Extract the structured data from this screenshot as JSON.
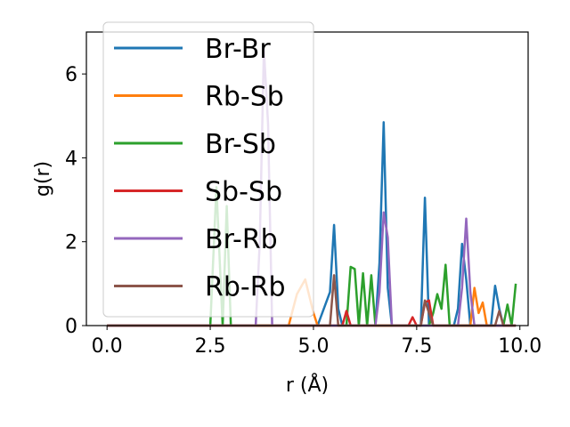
{
  "chart_data": {
    "type": "line",
    "title": "",
    "xlabel": "r (Å)",
    "ylabel": "g(r)",
    "xlim": [
      -0.5,
      10.2
    ],
    "ylim": [
      0,
      7
    ],
    "xticks": [
      0.0,
      2.5,
      5.0,
      7.5,
      10.0
    ],
    "xtick_labels": [
      "0.0",
      "2.5",
      "5.0",
      "7.5",
      "10.0"
    ],
    "yticks": [
      0,
      2,
      4,
      6
    ],
    "ytick_labels": [
      "0",
      "2",
      "4",
      "6"
    ],
    "grid": false,
    "legend_position": "upper-left",
    "series": [
      {
        "name": "Br-Br",
        "color": "#1f77b4",
        "x": [
          0,
          5.1,
          5.4,
          5.5,
          5.6,
          5.7,
          6.5,
          6.6,
          6.7,
          6.8,
          6.9,
          7.6,
          7.7,
          7.8,
          8.4,
          8.5,
          8.6,
          8.7,
          8.8,
          9.3,
          9.4,
          9.5,
          9.6,
          9.9
        ],
        "y": [
          0,
          0,
          0.8,
          2.4,
          0.4,
          0,
          0,
          1.5,
          4.85,
          0.9,
          0,
          0,
          3.05,
          0,
          0,
          0.4,
          1.95,
          1.1,
          0,
          0,
          0.95,
          0.4,
          0,
          0
        ]
      },
      {
        "name": "Rb-Sb",
        "color": "#ff7f0e",
        "x": [
          0,
          4.4,
          4.6,
          4.8,
          5.0,
          5.1,
          8.8,
          8.9,
          9.0,
          9.1,
          9.2,
          9.9
        ],
        "y": [
          0,
          0,
          0.75,
          1.1,
          0.3,
          0,
          0,
          0.9,
          0.3,
          0.55,
          0,
          0
        ]
      },
      {
        "name": "Br-Sb",
        "color": "#2ca02c",
        "x": [
          0,
          2.5,
          2.65,
          2.8,
          2.9,
          3.0,
          5.8,
          5.9,
          6.0,
          6.1,
          6.2,
          6.3,
          6.4,
          6.5,
          7.8,
          7.9,
          8.0,
          8.1,
          8.2,
          8.3,
          9.6,
          9.7,
          9.8,
          9.9
        ],
        "y": [
          0,
          0,
          3.3,
          0,
          2.85,
          0,
          0,
          1.4,
          1.35,
          0,
          1.25,
          0,
          1.2,
          0,
          0,
          0.3,
          0.75,
          0.4,
          1.45,
          0,
          0,
          0.5,
          0,
          1.0
        ]
      },
      {
        "name": "Sb-Sb",
        "color": "#d62728",
        "x": [
          0,
          5.7,
          5.8,
          5.9,
          7.3,
          7.4,
          7.5,
          7.6,
          7.7,
          7.8,
          7.9,
          9.9
        ],
        "y": [
          0,
          0,
          0.35,
          0,
          0,
          0.2,
          0,
          0,
          0.55,
          0.6,
          0,
          0
        ]
      },
      {
        "name": "Br-Rb",
        "color": "#9467bd",
        "x": [
          0,
          3.6,
          3.7,
          3.8,
          3.9,
          4.0,
          6.5,
          6.6,
          6.7,
          6.8,
          6.9,
          8.5,
          8.6,
          8.7,
          8.8,
          8.9,
          9.9
        ],
        "y": [
          0,
          0,
          2.0,
          6.6,
          4.8,
          0,
          0,
          0.8,
          2.7,
          2.1,
          0,
          0,
          0.9,
          2.55,
          0.8,
          0,
          0
        ]
      },
      {
        "name": "Rb-Rb",
        "color": "#8c564b",
        "x": [
          0,
          5.4,
          5.5,
          5.6,
          7.6,
          7.7,
          7.8,
          7.9,
          9.4,
          9.5,
          9.6,
          9.9
        ],
        "y": [
          0,
          0,
          1.2,
          0,
          0,
          0.6,
          0.3,
          0,
          0,
          0.35,
          0,
          0
        ]
      }
    ]
  }
}
